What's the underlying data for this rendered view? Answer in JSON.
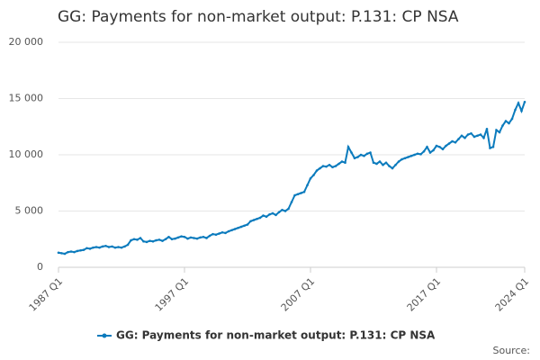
{
  "chart_data": {
    "type": "line",
    "title": "GG: Payments for non-market output: P.131: CP NSA",
    "source": "Source:",
    "categories": [
      "1987 Q1",
      null,
      null,
      null,
      null,
      null,
      null,
      null,
      null,
      null,
      null,
      null,
      null,
      null,
      null,
      null,
      null,
      null,
      null,
      null,
      null,
      null,
      null,
      null,
      null,
      null,
      null,
      null,
      null,
      null,
      null,
      null,
      null,
      null,
      null,
      null,
      null,
      null,
      null,
      null,
      "1997 Q1",
      null,
      null,
      null,
      null,
      null,
      null,
      null,
      null,
      null,
      null,
      null,
      null,
      null,
      null,
      null,
      null,
      null,
      null,
      null,
      null,
      null,
      null,
      null,
      null,
      null,
      null,
      null,
      null,
      null,
      null,
      null,
      null,
      null,
      null,
      null,
      null,
      null,
      null,
      null,
      "2007 Q1",
      null,
      null,
      null,
      null,
      null,
      null,
      null,
      null,
      null,
      null,
      null,
      null,
      null,
      null,
      null,
      null,
      null,
      null,
      null,
      null,
      null,
      null,
      null,
      null,
      null,
      null,
      null,
      null,
      null,
      null,
      null,
      null,
      null,
      null,
      null,
      null,
      null,
      null,
      null,
      "2017 Q1",
      null,
      null,
      null,
      null,
      null,
      null,
      null,
      null,
      null,
      null,
      null,
      null,
      null,
      null,
      null,
      null,
      null,
      null,
      null,
      null,
      null,
      null,
      null,
      null,
      null,
      null,
      null,
      "2024 Q1"
    ],
    "series": [
      {
        "name": "GG: Payments for non-market output: P.131: CP NSA",
        "color": "#0b7bbd",
        "values": [
          1300,
          1250,
          1200,
          1350,
          1400,
          1350,
          1450,
          1500,
          1550,
          1700,
          1650,
          1750,
          1800,
          1750,
          1850,
          1900,
          1800,
          1850,
          1750,
          1800,
          1750,
          1850,
          2000,
          2400,
          2500,
          2450,
          2600,
          2300,
          2250,
          2350,
          2300,
          2400,
          2450,
          2350,
          2500,
          2700,
          2500,
          2550,
          2650,
          2750,
          2700,
          2550,
          2650,
          2600,
          2550,
          2650,
          2700,
          2600,
          2800,
          2950,
          2900,
          3000,
          3100,
          3050,
          3200,
          3300,
          3400,
          3500,
          3600,
          3700,
          3800,
          4100,
          4200,
          4300,
          4400,
          4600,
          4500,
          4700,
          4800,
          4650,
          4900,
          5100,
          5000,
          5200,
          5800,
          6400,
          6500,
          6600,
          6700,
          7300,
          7900,
          8200,
          8600,
          8800,
          9000,
          8950,
          9100,
          8900,
          9000,
          9200,
          9400,
          9300,
          10700,
          10200,
          9700,
          9800,
          10000,
          9900,
          10100,
          10200,
          9300,
          9200,
          9400,
          9100,
          9300,
          9000,
          8800,
          9100,
          9400,
          9600,
          9700,
          9800,
          9900,
          10000,
          10100,
          10050,
          10300,
          10700,
          10200,
          10400,
          10800,
          10700,
          10500,
          10800,
          11000,
          11200,
          11100,
          11400,
          11700,
          11500,
          11800,
          11900,
          11600,
          11700,
          11800,
          11500,
          12300,
          10600,
          10700,
          12200,
          12000,
          12600,
          13000,
          12800,
          13200,
          14000,
          14600,
          13900,
          14700
        ]
      }
    ],
    "ylim": [
      0,
      20000
    ],
    "yticks": [
      0,
      {
        "value": 5000,
        "label": "5 000"
      },
      {
        "value": 10000,
        "label": "10 000"
      },
      {
        "value": 15000,
        "label": "15 000"
      },
      {
        "value": 20000,
        "label": "20 000"
      }
    ],
    "grid": true
  }
}
